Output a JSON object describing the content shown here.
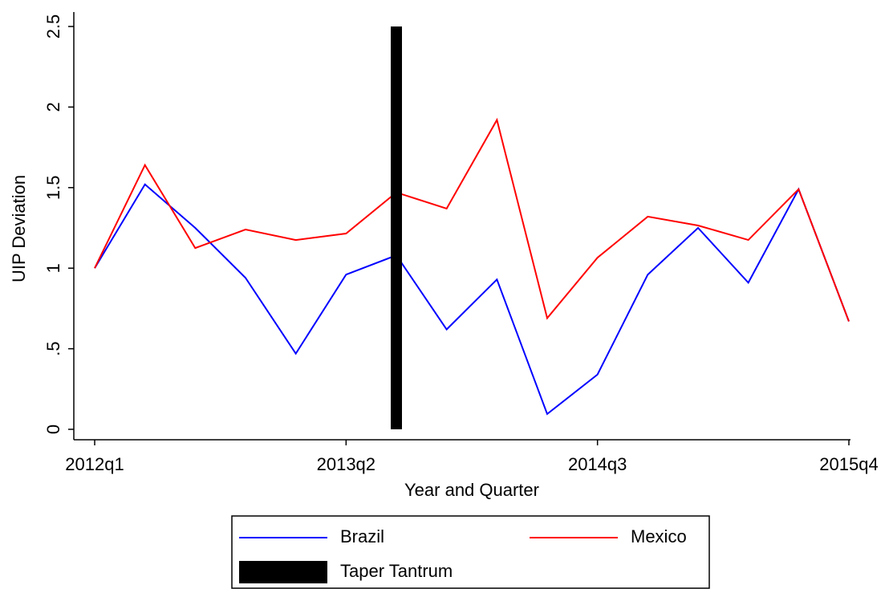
{
  "chart_data": {
    "type": "line",
    "x_label": "Year and Quarter",
    "y_label": "UIP Deviation",
    "categories": [
      "2012q1",
      null,
      null,
      null,
      null,
      "2013q2",
      null,
      null,
      null,
      null,
      "2014q3",
      null,
      null,
      null,
      null,
      "2015q4"
    ],
    "series": [
      {
        "name": "Brazil",
        "type": "line",
        "color": "#0000ff",
        "values": [
          1.0,
          1.52,
          1.25,
          0.94,
          0.47,
          0.96,
          1.08,
          0.62,
          0.93,
          0.095,
          0.34,
          0.96,
          1.25,
          0.91,
          1.49,
          0.67
        ]
      },
      {
        "name": "Mexico",
        "type": "line",
        "color": "#ff0000",
        "values": [
          1.0,
          1.64,
          1.125,
          1.24,
          1.175,
          1.215,
          1.47,
          1.37,
          1.92,
          0.69,
          1.065,
          1.32,
          1.265,
          1.175,
          1.49,
          0.67
        ]
      },
      {
        "name": "Taper Tantrum",
        "type": "bar",
        "color": "#000000",
        "values": [
          null,
          null,
          null,
          null,
          null,
          null,
          2.5,
          null,
          null,
          null,
          null,
          null,
          null,
          null,
          null,
          null
        ]
      }
    ],
    "ylim": [
      0,
      2.5
    ],
    "yticks": [
      0,
      {
        "value": 0.5,
        "label": ".5"
      },
      1,
      1.5,
      2,
      2.5
    ]
  }
}
